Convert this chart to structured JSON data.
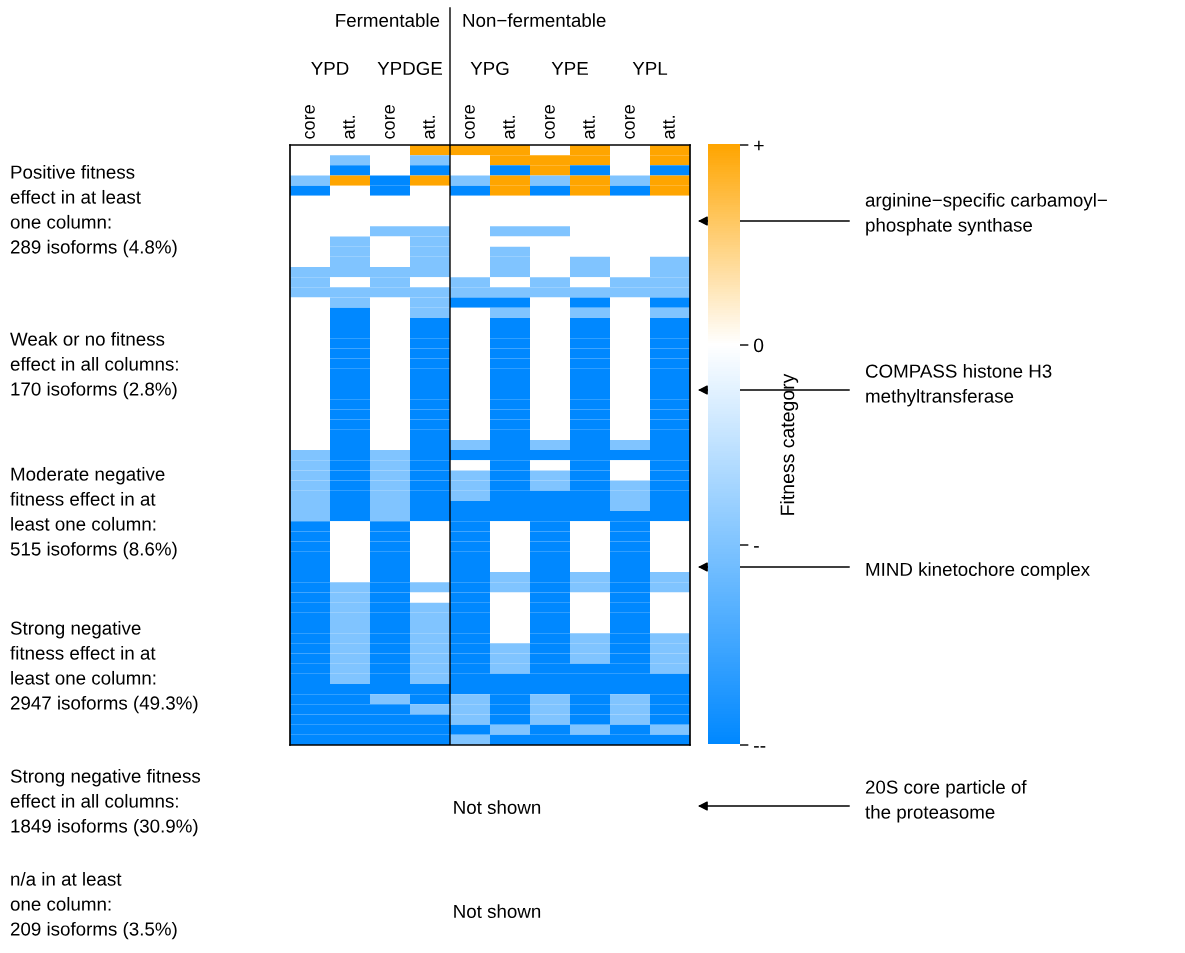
{
  "chart_data": {
    "type": "heatmap",
    "categories": [
      "core",
      "att.",
      "core",
      "att.",
      "core",
      "att.",
      "core",
      "att.",
      "core",
      "att."
    ],
    "y_categories": [
      null,
      null,
      null,
      null,
      null,
      null,
      null,
      null,
      null,
      null,
      null,
      null,
      null,
      null,
      null,
      null,
      null,
      null,
      null,
      null,
      null,
      null,
      null,
      null,
      null,
      null,
      null,
      null,
      null,
      null,
      null,
      null,
      null,
      null,
      null,
      null,
      null,
      null,
      null,
      null,
      null,
      null,
      null,
      null,
      null,
      null,
      null,
      null,
      null,
      null,
      null,
      null,
      null,
      null,
      null,
      null,
      null,
      null,
      null
    ],
    "cells": [
      [
        0,
        0,
        0,
        1,
        1,
        1,
        0,
        1,
        0,
        1
      ],
      [
        0,
        -1,
        0,
        -1,
        0,
        1,
        1,
        1,
        0,
        1
      ],
      [
        0,
        -2,
        0,
        -2,
        0,
        -2,
        1,
        -2,
        0,
        -2
      ],
      [
        -1,
        1,
        -2,
        1,
        -1,
        1,
        -1,
        1,
        -1,
        1
      ],
      [
        -2,
        0,
        -2,
        0,
        -2,
        1,
        -2,
        1,
        -2,
        1
      ],
      [
        0,
        0,
        0,
        0,
        0,
        0,
        0,
        0,
        0,
        0
      ],
      [
        0,
        0,
        0,
        0,
        0,
        0,
        0,
        0,
        0,
        0
      ],
      [
        0,
        0,
        0,
        0,
        0,
        0,
        0,
        0,
        0,
        0
      ],
      [
        0,
        0,
        -1,
        -1,
        0,
        -1,
        -1,
        0,
        0,
        0
      ],
      [
        0,
        -1,
        0,
        -1,
        0,
        0,
        0,
        0,
        0,
        0
      ],
      [
        0,
        -1,
        0,
        -1,
        0,
        -1,
        0,
        0,
        0,
        0
      ],
      [
        0,
        -1,
        0,
        -1,
        0,
        -1,
        0,
        -1,
        0,
        -1
      ],
      [
        -1,
        -1,
        -1,
        -1,
        0,
        -1,
        0,
        -1,
        0,
        -1
      ],
      [
        -1,
        0,
        -1,
        0,
        -1,
        0,
        -1,
        0,
        -1,
        -1
      ],
      [
        -1,
        -1,
        -1,
        -1,
        -1,
        -1,
        -1,
        -1,
        -1,
        -1
      ],
      [
        0,
        -1,
        0,
        -1,
        -2,
        -2,
        0,
        -2,
        0,
        -2
      ],
      [
        0,
        -2,
        0,
        -1,
        0,
        -1,
        0,
        -1,
        0,
        -1
      ],
      [
        0,
        -2,
        0,
        -2,
        0,
        -2,
        0,
        -2,
        0,
        -2
      ],
      [
        0,
        -2,
        0,
        -2,
        0,
        -2,
        0,
        -2,
        0,
        -2
      ],
      [
        0,
        -2,
        0,
        -2,
        0,
        -2,
        0,
        -2,
        0,
        -2
      ],
      [
        0,
        -2,
        0,
        -2,
        0,
        -2,
        0,
        -2,
        0,
        -2
      ],
      [
        0,
        -2,
        0,
        -2,
        0,
        -2,
        0,
        -2,
        0,
        -2
      ],
      [
        0,
        -2,
        0,
        -2,
        0,
        -2,
        0,
        -2,
        0,
        -2
      ],
      [
        0,
        -2,
        0,
        -2,
        0,
        -2,
        0,
        -2,
        0,
        -2
      ],
      [
        0,
        -2,
        0,
        -2,
        0,
        -2,
        0,
        -2,
        0,
        -2
      ],
      [
        0,
        -2,
        0,
        -2,
        0,
        -2,
        0,
        -2,
        0,
        -2
      ],
      [
        0,
        -2,
        0,
        -2,
        0,
        -2,
        0,
        -2,
        0,
        -2
      ],
      [
        0,
        -2,
        0,
        -2,
        0,
        -2,
        0,
        -2,
        0,
        -2
      ],
      [
        0,
        -2,
        0,
        -2,
        0,
        -2,
        0,
        -2,
        0,
        -2
      ],
      [
        0,
        -2,
        0,
        -2,
        -1,
        -2,
        -1,
        -2,
        -1,
        -2
      ],
      [
        -1,
        -2,
        -1,
        -2,
        -2,
        -2,
        -2,
        -2,
        -2,
        -2
      ],
      [
        -1,
        -2,
        -1,
        -2,
        0,
        -2,
        0,
        -2,
        0,
        -2
      ],
      [
        -1,
        -2,
        -1,
        -2,
        -1,
        -2,
        -1,
        -2,
        0,
        -2
      ],
      [
        -1,
        -2,
        -1,
        -2,
        -1,
        -2,
        -1,
        -2,
        -1,
        -2
      ],
      [
        -1,
        -2,
        -1,
        -2,
        -1,
        -2,
        -2,
        -2,
        -1,
        -2
      ],
      [
        -1,
        -2,
        -1,
        -2,
        -2,
        -2,
        -2,
        -2,
        -1,
        -2
      ],
      [
        -1,
        -2,
        -1,
        -2,
        -2,
        -2,
        -2,
        -2,
        -2,
        -2
      ],
      [
        -2,
        0,
        -2,
        0,
        -2,
        0,
        -2,
        0,
        -2,
        0
      ],
      [
        -2,
        0,
        -2,
        0,
        -2,
        0,
        -2,
        0,
        -2,
        0
      ],
      [
        -2,
        0,
        -2,
        0,
        -2,
        0,
        -2,
        0,
        -2,
        0
      ],
      [
        -2,
        0,
        -2,
        0,
        -2,
        0,
        -2,
        0,
        -2,
        0
      ],
      [
        -2,
        0,
        -2,
        0,
        -2,
        0,
        -2,
        0,
        -2,
        0
      ],
      [
        -2,
        0,
        -2,
        0,
        -2,
        -1,
        -2,
        -1,
        -2,
        -1
      ],
      [
        -2,
        -1,
        -2,
        -1,
        -2,
        -1,
        -2,
        -1,
        -2,
        -1
      ],
      [
        -2,
        -1,
        -2,
        0,
        -2,
        0,
        -2,
        0,
        -2,
        0
      ],
      [
        -2,
        -1,
        -2,
        -1,
        -2,
        0,
        -2,
        0,
        -2,
        0
      ],
      [
        -2,
        -1,
        -2,
        -1,
        -2,
        0,
        -2,
        0,
        -2,
        0
      ],
      [
        -2,
        -1,
        -2,
        -1,
        -2,
        0,
        -2,
        0,
        -2,
        0
      ],
      [
        -2,
        -1,
        -2,
        -1,
        -2,
        0,
        -2,
        -1,
        -2,
        -1
      ],
      [
        -2,
        -1,
        -2,
        -1,
        -2,
        -1,
        -2,
        -1,
        -2,
        -1
      ],
      [
        -2,
        -1,
        -2,
        -1,
        -2,
        -1,
        -2,
        -1,
        -2,
        -1
      ],
      [
        -2,
        -1,
        -2,
        -1,
        -2,
        -1,
        -2,
        -2,
        -2,
        -1
      ],
      [
        -2,
        -1,
        -2,
        -1,
        -2,
        -2,
        -2,
        -2,
        -2,
        -2
      ],
      [
        -2,
        -2,
        -2,
        -2,
        -2,
        -2,
        -2,
        -2,
        -2,
        -2
      ],
      [
        -2,
        -2,
        -1,
        -2,
        -1,
        -2,
        -1,
        -2,
        -1,
        -2
      ],
      [
        -2,
        -2,
        -2,
        -1,
        -1,
        -2,
        -1,
        -2,
        -1,
        -2
      ],
      [
        -2,
        -2,
        -2,
        -2,
        -1,
        -2,
        -1,
        -2,
        -1,
        -2
      ],
      [
        -2,
        -2,
        -2,
        -2,
        -2,
        -1,
        -2,
        -1,
        -2,
        -1
      ],
      [
        -2,
        -2,
        -2,
        -2,
        -1,
        -2,
        -2,
        -2,
        -2,
        -2
      ]
    ],
    "clim": [
      -2,
      1
    ],
    "cticks": [
      {
        "value": 1,
        "label": "+"
      },
      {
        "value": 0,
        "label": "0"
      },
      {
        "value": -1,
        "label": "-"
      },
      {
        "value": -2,
        "label": "--"
      }
    ],
    "clabel": "Fitness category",
    "tick_labels": "x",
    "annotations": [
      "Fermentable",
      "Non−fermentable",
      "YPD",
      "YPDGE",
      "YPG",
      "YPE",
      "YPL",
      "Positive fitness\neffect in at least\none column:\n289 isoforms (4.8%)",
      "Weak or no fitness\neffect in all columns:\n170 isoforms (2.8%)",
      "Moderate negative\nfitness effect in at\nleast one column:\n515 isoforms (8.6%)",
      "Strong negative\nfitness effect in at\nleast one column:\n2947 isoforms (49.3%)",
      "Strong negative fitness\neffect in all columns:\n1849 isoforms (30.9%)",
      "n/a in at least\none column:\n209 isoforms (3.5%)",
      "Not shown",
      "Not shown",
      "arginine−specific carbamoyl−\nphosphate synthase",
      "COMPASS histone H3\nmethyltransferase",
      "MIND kinetochore complex",
      "20S core particle of\nthe proteasome"
    ]
  }
}
